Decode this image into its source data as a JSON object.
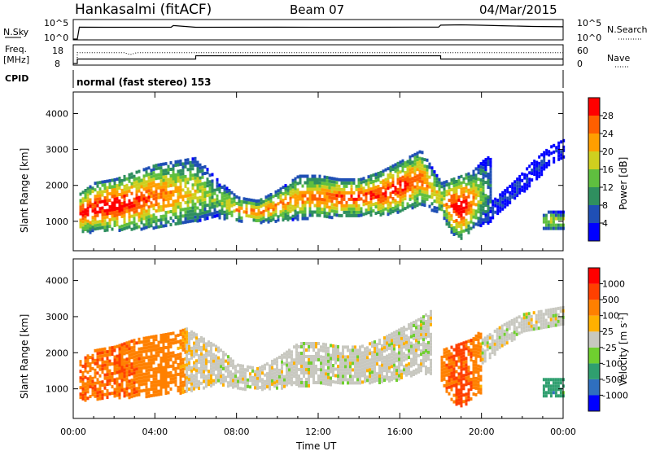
{
  "header": {
    "title": "Hankasalmi (fitACF)",
    "beam": "Beam 07",
    "date": "04/Mar/2015"
  },
  "cpid_text": "normal (fast stereo) 153",
  "chart_data": [
    {
      "type": "line",
      "panel": "noise",
      "left_label": "N.Sky",
      "right_label": "N.Search",
      "left_ticks": [
        "10^5",
        "10^0"
      ],
      "right_ticks": [
        "10^5",
        "10^0"
      ],
      "note": "Sky noise (solid) and search noise (dotted) on log scale",
      "series": [
        {
          "name": "N.Sky",
          "x": [
            0.0,
            0.2,
            0.3,
            2.0,
            4.8,
            4.9,
            6.0,
            10.0,
            14.0,
            16.8,
            17.9,
            18.0,
            19.0,
            20.0,
            21.0,
            22.5,
            24.0
          ],
          "y": [
            1,
            1,
            3000,
            2800,
            3000,
            9000,
            2900,
            3000,
            2900,
            3200,
            3100,
            12000,
            15000,
            11000,
            8000,
            5000,
            4000
          ]
        }
      ]
    },
    {
      "type": "line",
      "panel": "frequency",
      "left_label": "Freq.",
      "left_label_units": "[MHz]",
      "right_label": "Nave",
      "left_ticks": [
        "18",
        "8"
      ],
      "right_ticks": [
        "60",
        "0"
      ],
      "series": [
        {
          "name": "Freq.",
          "x": [
            0.0,
            0.2,
            0.2,
            6.0,
            6.0,
            18.0,
            18.0,
            24.0
          ],
          "y": [
            8,
            8,
            10.5,
            10.5,
            12.3,
            12.3,
            10.5,
            10.5
          ]
        },
        {
          "name": "Nave",
          "x": [
            0.0,
            0.2,
            0.2,
            2.5,
            2.8,
            3.1,
            24.0
          ],
          "y": [
            0,
            0,
            36,
            36,
            30,
            36,
            36
          ]
        }
      ]
    },
    {
      "type": "heatmap",
      "panel": "power",
      "ylabel": "Slant Range [km]",
      "x_ticks": [
        "00:00",
        "04:00",
        "08:00",
        "12:00",
        "16:00",
        "20:00",
        "00:00"
      ],
      "y_ticks": [
        "1000",
        "2000",
        "3000",
        "4000"
      ],
      "xlim": [
        0,
        24
      ],
      "ylim": [
        180,
        4600
      ],
      "colorbar_label": "Power [dB]",
      "colorbar_ticks": [
        "4",
        "8",
        "12",
        "16",
        "20",
        "24",
        "28"
      ],
      "colorscale": [
        "#0000ff",
        "#1f4fb5",
        "#2f8f5f",
        "#5fbf3f",
        "#cfcf1f",
        "#ff9f00",
        "#ff5f00",
        "#ff0000"
      ],
      "bands": [
        {
          "x": [
            0.3,
            1.0,
            2.0,
            3.0,
            4.0,
            5.0,
            6.0,
            7.0,
            8.0,
            9.0,
            10.0,
            11.0,
            12.0,
            13.0,
            14.0,
            15.0,
            16.0,
            17.0,
            18.0,
            18.5,
            19.0,
            19.5,
            20.0,
            20.5
          ],
          "lo": [
            700,
            750,
            780,
            800,
            850,
            900,
            1000,
            1150,
            1050,
            1000,
            1050,
            1100,
            1150,
            1150,
            1200,
            1200,
            1300,
            1500,
            1200,
            700,
            500,
            800,
            900,
            1000
          ],
          "hi": [
            1800,
            2100,
            2200,
            2400,
            2600,
            2700,
            2800,
            2200,
            1700,
            1600,
            1900,
            2300,
            2300,
            2200,
            2200,
            2400,
            2700,
            3000,
            2100,
            2200,
            2300,
            2400,
            2700,
            2900
          ],
          "peak": [
            28,
            28,
            30,
            27,
            25,
            22,
            18,
            14,
            22,
            24,
            23,
            22,
            24,
            26,
            26,
            27,
            28,
            24,
            18,
            28,
            30,
            24,
            14,
            8
          ]
        },
        {
          "x": [
            20.5,
            21.5,
            22.5,
            23.3,
            24.0
          ],
          "lo": [
            1100,
            1600,
            2100,
            2600,
            2800
          ],
          "hi": [
            1600,
            2100,
            2700,
            3100,
            3300
          ],
          "peak": [
            8,
            6,
            5,
            4,
            4
          ]
        },
        {
          "x": [
            23.0,
            23.5,
            24.0
          ],
          "lo": [
            800,
            800,
            800
          ],
          "hi": [
            1300,
            1300,
            1300
          ],
          "peak": [
            16,
            18,
            16
          ]
        }
      ]
    },
    {
      "type": "heatmap",
      "panel": "velocity",
      "ylabel": "Slant Range [km]",
      "xlabel": "Time UT",
      "x_ticks": [
        "00:00",
        "04:00",
        "08:00",
        "12:00",
        "16:00",
        "20:00",
        "00:00"
      ],
      "y_ticks": [
        "1000",
        "2000",
        "3000",
        "4000"
      ],
      "xlim": [
        0,
        24
      ],
      "ylim": [
        180,
        4600
      ],
      "colorbar_label": "Velocity [m s",
      "colorbar_label_superscript": "-1",
      "colorbar_label_suffix": "]",
      "colorbar_ticks": [
        "1000",
        "500",
        "100",
        "25",
        "-25",
        "-100",
        "-500",
        "-1000"
      ],
      "colorscale": [
        "#0000ff",
        "#2f6fbf",
        "#2f9f6f",
        "#6fcf2f",
        "#c8c8c0",
        "#ffb000",
        "#ff8000",
        "#ff4000",
        "#ff0000"
      ],
      "bands": [
        {
          "x": [
            0.3,
            1.0,
            2.0,
            3.0,
            4.0,
            5.0,
            5.5
          ],
          "lo": [
            700,
            750,
            780,
            800,
            850,
            900,
            950
          ],
          "hi": [
            1800,
            2100,
            2200,
            2400,
            2500,
            2600,
            2700
          ],
          "vel": [
            -300,
            -250,
            -300,
            -250,
            -200,
            -150,
            -100
          ]
        },
        {
          "x": [
            5.5,
            7.0,
            8.0,
            9.0,
            10.0,
            11.0,
            12.0,
            13.0,
            14.0,
            15.0,
            16.0,
            17.0,
            17.5
          ],
          "lo": [
            950,
            1150,
            1050,
            1000,
            1050,
            1100,
            1150,
            1150,
            1200,
            1200,
            1300,
            1500,
            1400
          ],
          "hi": [
            2700,
            2200,
            1700,
            1600,
            1900,
            2300,
            2300,
            2200,
            2200,
            2400,
            2700,
            3000,
            3200
          ],
          "vel": [
            -20,
            0,
            0,
            0,
            0,
            0,
            0,
            0,
            0,
            0,
            0,
            0,
            0
          ]
        },
        {
          "x": [
            18.0,
            18.5,
            19.0,
            19.5,
            20.0
          ],
          "lo": [
            1200,
            700,
            500,
            800,
            900
          ],
          "hi": [
            2100,
            2200,
            2300,
            2400,
            2700
          ],
          "vel": [
            -200,
            -300,
            -400,
            -250,
            -100
          ]
        },
        {
          "x": [
            20.0,
            21.0,
            22.0,
            23.0,
            24.0
          ],
          "lo": [
            1700,
            2200,
            2600,
            2700,
            2800
          ],
          "hi": [
            2400,
            2800,
            3100,
            3200,
            3300
          ],
          "vel": [
            0,
            0,
            0,
            0,
            0
          ]
        },
        {
          "x": [
            23.0,
            23.5,
            24.0
          ],
          "lo": [
            800,
            800,
            800
          ],
          "hi": [
            1300,
            1300,
            1300
          ],
          "vel": [
            60,
            80,
            60
          ]
        }
      ]
    }
  ]
}
